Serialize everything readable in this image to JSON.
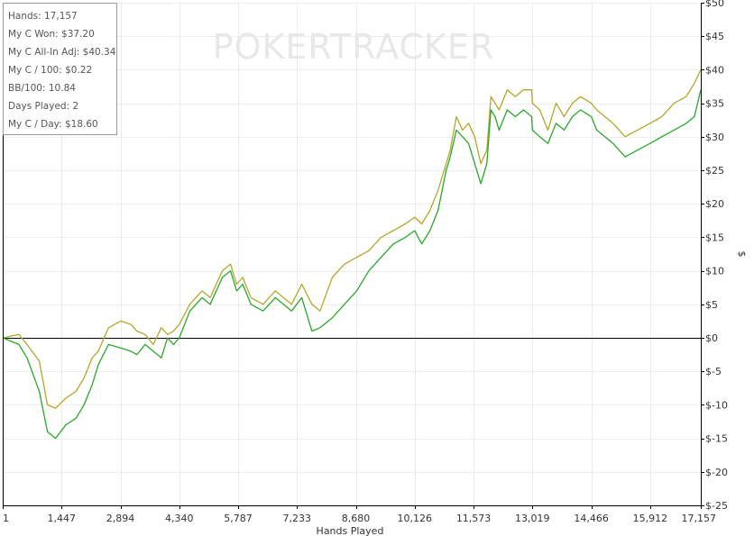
{
  "watermark": {
    "text": "POKERTRACKER"
  },
  "stats": [
    {
      "label": "Hands:",
      "value": "17,157"
    },
    {
      "label": "My C Won:",
      "value": "$37.20"
    },
    {
      "label": "My C All-In Adj:",
      "value": "$40.34"
    },
    {
      "label": "My C / 100:",
      "value": "$0.22"
    },
    {
      "label": "BB/100:",
      "value": "10.84"
    },
    {
      "label": "Days Played:",
      "value": "2"
    },
    {
      "label": "My C / Day:",
      "value": "$18.60"
    }
  ],
  "chart_data": {
    "type": "line",
    "title": "",
    "xlabel": "Hands Played",
    "ylabel": "$",
    "xlim": [
      1,
      17157
    ],
    "ylim": [
      -25,
      50
    ],
    "x_ticks": [
      1,
      1447,
      2894,
      4340,
      5787,
      7233,
      8680,
      10126,
      11573,
      13019,
      14466,
      15912,
      17157
    ],
    "x_tick_labels": [
      "1",
      "1,447",
      "2,894",
      "4,340",
      "5,787",
      "7,233",
      "8,680",
      "10,126",
      "11,573",
      "13,019",
      "14,466",
      "15,912",
      "17,157"
    ],
    "y_ticks": [
      50,
      45,
      40,
      35,
      30,
      25,
      20,
      15,
      10,
      5,
      0,
      -5,
      -10,
      -15,
      -20,
      -25
    ],
    "y_tick_labels": [
      "$50",
      "$45",
      "$40",
      "$35",
      "$30",
      "$25",
      "$20",
      "$15",
      "$10",
      "$5",
      "$0",
      "$-5",
      "$-10",
      "$-15",
      "$-20",
      "$-25"
    ],
    "grid": true,
    "colors": {
      "all_in_adj": "#b2a82a",
      "won": "#2aa82a",
      "zero_line": "#000000",
      "grid": "#ececec"
    },
    "series": [
      {
        "key": "all_in_adj",
        "x": [
          1,
          400,
          600,
          900,
          1100,
          1300,
          1550,
          1800,
          2000,
          2200,
          2350,
          2600,
          2900,
          3150,
          3300,
          3500,
          3700,
          3900,
          4050,
          4200,
          4340,
          4600,
          4900,
          5100,
          5400,
          5600,
          5750,
          5900,
          6100,
          6400,
          6700,
          6900,
          7100,
          7350,
          7600,
          7800,
          8100,
          8400,
          8700,
          9000,
          9300,
          9600,
          9900,
          10126,
          10300,
          10500,
          10700,
          10900,
          11000,
          11150,
          11300,
          11450,
          11600,
          11750,
          11900,
          12000,
          12100,
          12200,
          12400,
          12600,
          12800,
          13000,
          13019,
          13200,
          13400,
          13600,
          13800,
          14000,
          14200,
          14466,
          14600,
          14800,
          15000,
          15300,
          15600,
          15912,
          16200,
          16500,
          16800,
          17000,
          17157
        ],
        "y": [
          0,
          0.5,
          -1,
          -3.5,
          -10,
          -10.5,
          -9,
          -8,
          -6,
          -3,
          -2,
          1.5,
          2.5,
          2,
          1,
          0.5,
          -1,
          1.5,
          0.5,
          1,
          2,
          5,
          7,
          6,
          10,
          11,
          8,
          9,
          6,
          5,
          7,
          6,
          5,
          8,
          5,
          4,
          9,
          11,
          12,
          13,
          15,
          16,
          17,
          18,
          17,
          19,
          22,
          26,
          28,
          33,
          31,
          32,
          30,
          26,
          28,
          36,
          35,
          34,
          37,
          36,
          37,
          37,
          35,
          34,
          31,
          35,
          33,
          35,
          36,
          35,
          34,
          33,
          32,
          30,
          31,
          32,
          33,
          35,
          36,
          38,
          40
        ]
      },
      {
        "key": "won",
        "x": [
          1,
          400,
          600,
          900,
          1100,
          1300,
          1550,
          1800,
          2000,
          2200,
          2350,
          2600,
          2900,
          3150,
          3300,
          3500,
          3700,
          3900,
          4050,
          4200,
          4340,
          4600,
          4900,
          5100,
          5400,
          5600,
          5750,
          5900,
          6100,
          6400,
          6700,
          6900,
          7100,
          7350,
          7600,
          7800,
          8100,
          8400,
          8700,
          9000,
          9300,
          9600,
          9900,
          10126,
          10300,
          10500,
          10700,
          10900,
          11000,
          11150,
          11300,
          11450,
          11600,
          11750,
          11900,
          12000,
          12100,
          12200,
          12400,
          12600,
          12800,
          13000,
          13019,
          13200,
          13400,
          13600,
          13800,
          14000,
          14200,
          14466,
          14600,
          14800,
          15000,
          15300,
          15600,
          15912,
          16200,
          16500,
          16800,
          17000,
          17157
        ],
        "y": [
          0,
          -1,
          -3,
          -8,
          -14,
          -15,
          -13,
          -12,
          -10,
          -7,
          -4,
          -1,
          -1.5,
          -2,
          -2.5,
          -1,
          -2,
          -3,
          0,
          -1,
          0,
          4,
          6,
          5,
          9,
          10,
          7,
          8,
          5,
          4,
          6,
          5,
          4,
          6,
          1,
          1.5,
          3,
          5,
          7,
          10,
          12,
          14,
          15,
          16,
          14,
          16,
          19,
          25,
          27,
          31,
          30,
          29,
          26,
          23,
          26,
          34,
          33,
          31,
          34,
          33,
          34,
          33,
          31,
          30,
          29,
          32,
          31,
          33,
          34,
          33,
          31,
          30,
          29,
          27,
          28,
          29,
          30,
          31,
          32,
          33,
          37
        ]
      }
    ]
  }
}
